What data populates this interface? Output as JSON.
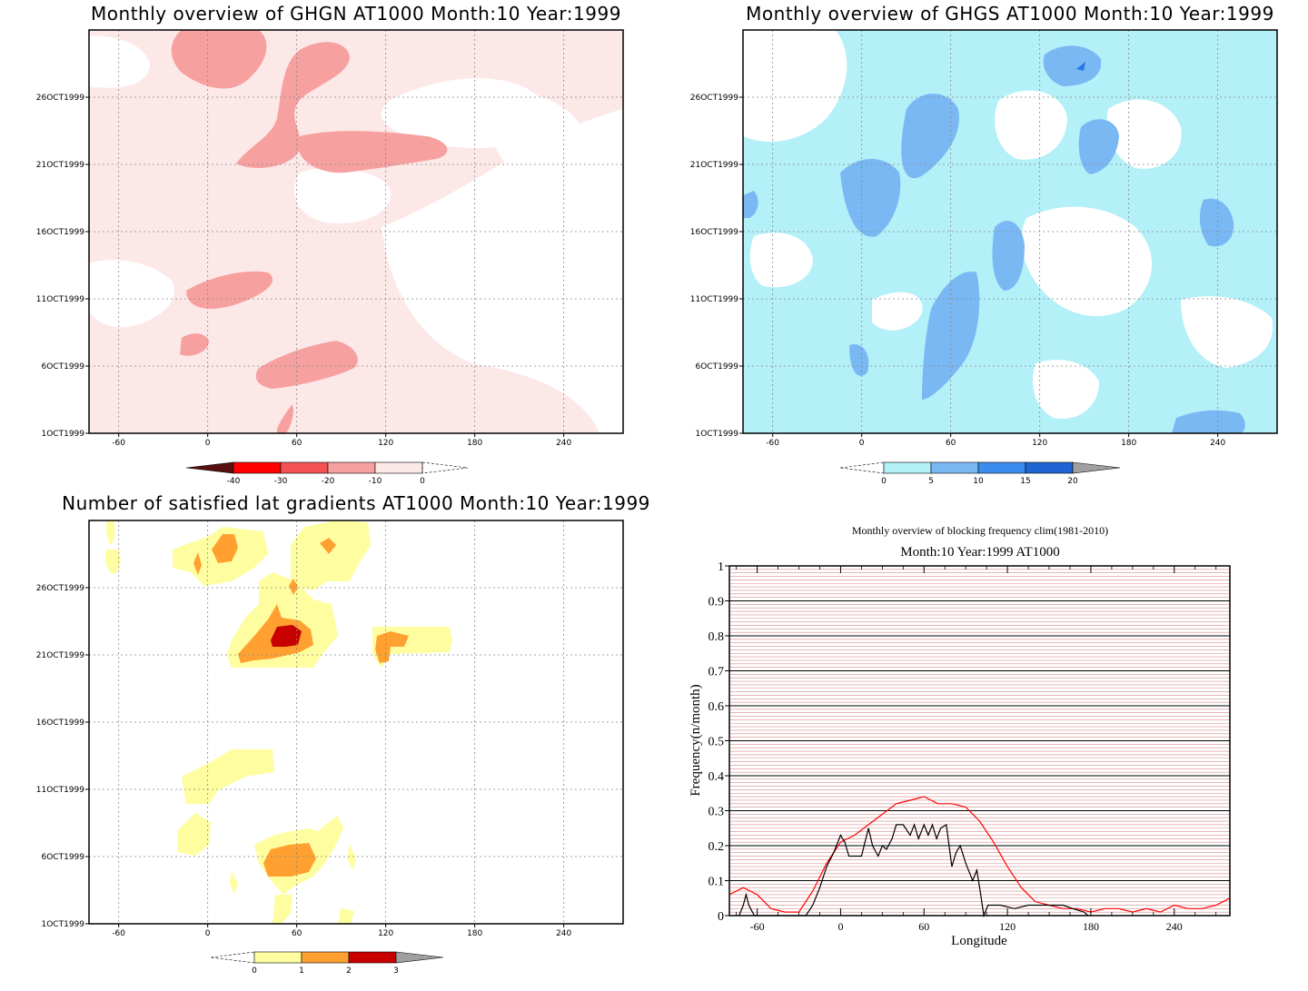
{
  "chart_data": [
    {
      "type": "heatmap",
      "title": "Monthly overview of GHGN AT1000 Month:10 Year:1999",
      "x_ticks": [
        "-60",
        "0",
        "60",
        "120",
        "180",
        "240"
      ],
      "y_ticks": [
        "1OCT1999",
        "6OCT1999",
        "11OCT1999",
        "16OCT1999",
        "21OCT1999",
        "26OCT1999"
      ],
      "xlim": [
        -80,
        280
      ],
      "colorbar": {
        "ticks": [
          "-40",
          "-30",
          "-20",
          "-10",
          "0"
        ],
        "colors": [
          "#5a0f0f",
          "#ff0000",
          "#f25252",
          "#f7a0a0",
          "#fde8e8"
        ]
      },
      "regions": [
        {
          "name": "light",
          "color": "#fde8e8"
        },
        {
          "name": "mid",
          "color": "#f7a0a0"
        }
      ]
    },
    {
      "type": "heatmap",
      "title": "Monthly overview of GHGS AT1000 Month:10 Year:1999",
      "x_ticks": [
        "-60",
        "0",
        "60",
        "120",
        "180",
        "240"
      ],
      "y_ticks": [
        "1OCT1999",
        "6OCT1999",
        "11OCT1999",
        "16OCT1999",
        "21OCT1999",
        "26OCT1999"
      ],
      "xlim": [
        -80,
        280
      ],
      "colorbar": {
        "ticks": [
          "0",
          "5",
          "10",
          "15",
          "20"
        ],
        "colors": [
          "#b4f0f8",
          "#7ab8f4",
          "#3c8cf0",
          "#1e64d2",
          "#a0a0a0"
        ]
      },
      "regions": [
        {
          "name": "light",
          "color": "#b4f0f8"
        },
        {
          "name": "mid",
          "color": "#7ab8f4"
        },
        {
          "name": "dark",
          "color": "#2a78e0"
        }
      ]
    },
    {
      "type": "heatmap",
      "title": "Number of satisfied lat gradients AT1000 Month:10 Year:1999",
      "x_ticks": [
        "-60",
        "0",
        "60",
        "120",
        "180",
        "240"
      ],
      "y_ticks": [
        "1OCT1999",
        "6OCT1999",
        "11OCT1999",
        "16OCT1999",
        "21OCT1999",
        "26OCT1999"
      ],
      "xlim": [
        -80,
        280
      ],
      "colorbar": {
        "ticks": [
          "0",
          "1",
          "2",
          "3"
        ],
        "colors": [
          "#fefea0",
          "#ffa030",
          "#c80000",
          "#a0a0a0"
        ]
      },
      "regions": [
        {
          "name": "one",
          "color": "#fefea0"
        },
        {
          "name": "two",
          "color": "#ffa030"
        },
        {
          "name": "three",
          "color": "#c80000"
        }
      ]
    },
    {
      "type": "line",
      "title": "Monthly overview of blocking frequency clim(1981-2010)",
      "subtitle": "Month:10 Year:1999  AT1000",
      "xlabel": "Longitude",
      "ylabel": "Frequency(n/month)",
      "xlim": [
        -80,
        280
      ],
      "ylim": [
        0,
        1
      ],
      "x_ticks": [
        "-60",
        "0",
        "60",
        "120",
        "180",
        "240"
      ],
      "y_ticks": [
        "0",
        "0.1",
        "0.2",
        "0.3",
        "0.4",
        "0.5",
        "0.6",
        "0.7",
        "0.8",
        "0.9",
        "1"
      ],
      "grid": true,
      "series": [
        {
          "color": "#ff0000",
          "x": [
            -80,
            -70,
            -60,
            -50,
            -40,
            -30,
            -20,
            -10,
            0,
            10,
            20,
            30,
            40,
            50,
            60,
            70,
            80,
            90,
            100,
            110,
            120,
            130,
            140,
            150,
            160,
            170,
            180,
            190,
            200,
            210,
            220,
            230,
            240,
            250,
            260,
            270,
            280
          ],
          "y": [
            0.06,
            0.08,
            0.06,
            0.02,
            0.01,
            0.01,
            0.07,
            0.15,
            0.21,
            0.23,
            0.26,
            0.29,
            0.32,
            0.33,
            0.34,
            0.32,
            0.32,
            0.31,
            0.27,
            0.21,
            0.14,
            0.08,
            0.04,
            0.03,
            0.02,
            0.02,
            0.01,
            0.02,
            0.02,
            0.01,
            0.02,
            0.01,
            0.03,
            0.02,
            0.02,
            0.03,
            0.05
          ]
        },
        {
          "color": "#000000",
          "x": [
            -73,
            -70,
            -68,
            -66,
            -62,
            -58,
            -40,
            -25,
            -20,
            -15,
            -10,
            -5,
            0,
            3,
            6,
            15,
            20,
            23,
            27,
            30,
            33,
            37,
            40,
            45,
            50,
            53,
            56,
            60,
            63,
            66,
            69,
            72,
            76,
            80,
            83,
            86,
            90,
            95,
            98,
            100,
            103,
            106,
            110,
            115,
            125,
            135,
            140,
            145,
            155,
            160,
            167,
            175,
            178
          ],
          "y": [
            0.0,
            0.03,
            0.06,
            0.03,
            0.0,
            0.0,
            0.0,
            0.0,
            0.03,
            0.08,
            0.14,
            0.18,
            0.23,
            0.21,
            0.17,
            0.17,
            0.25,
            0.2,
            0.17,
            0.2,
            0.19,
            0.22,
            0.26,
            0.26,
            0.23,
            0.26,
            0.22,
            0.26,
            0.23,
            0.26,
            0.22,
            0.25,
            0.26,
            0.14,
            0.18,
            0.2,
            0.15,
            0.1,
            0.13,
            0.08,
            0.0,
            0.03,
            0.03,
            0.03,
            0.02,
            0.03,
            0.03,
            0.03,
            0.03,
            0.03,
            0.02,
            0.01,
            0.0
          ]
        }
      ]
    }
  ]
}
